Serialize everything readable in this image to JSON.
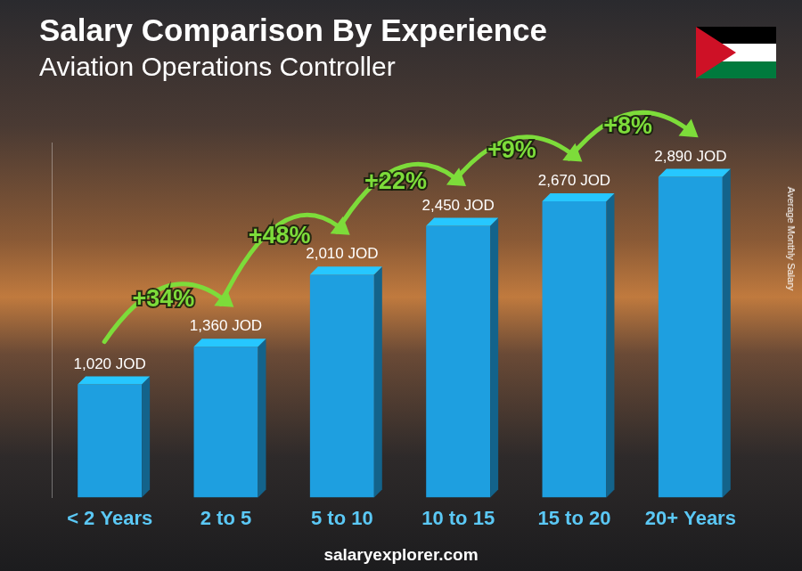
{
  "chart_data": {
    "type": "bar",
    "title": "Salary Comparison By Experience",
    "subtitle": "Aviation Operations Controller",
    "ylabel": "Average Monthly Salary",
    "source": "salaryexplorer.com",
    "categories": [
      "< 2 Years",
      "2 to 5",
      "5 to 10",
      "10 to 15",
      "15 to 20",
      "20+ Years"
    ],
    "values": [
      1020,
      1360,
      2010,
      2450,
      2670,
      2890
    ],
    "value_labels": [
      "1,020 JOD",
      "1,360 JOD",
      "2,010 JOD",
      "2,450 JOD",
      "2,670 JOD",
      "2,890 JOD"
    ],
    "data_labels": true,
    "annotations": [
      "+34%",
      "+48%",
      "+22%",
      "+9%",
      "+8%"
    ],
    "color": "#1e9fe0",
    "ylim": [
      0,
      3200
    ],
    "grid": false,
    "tick_labels": "x"
  }
}
